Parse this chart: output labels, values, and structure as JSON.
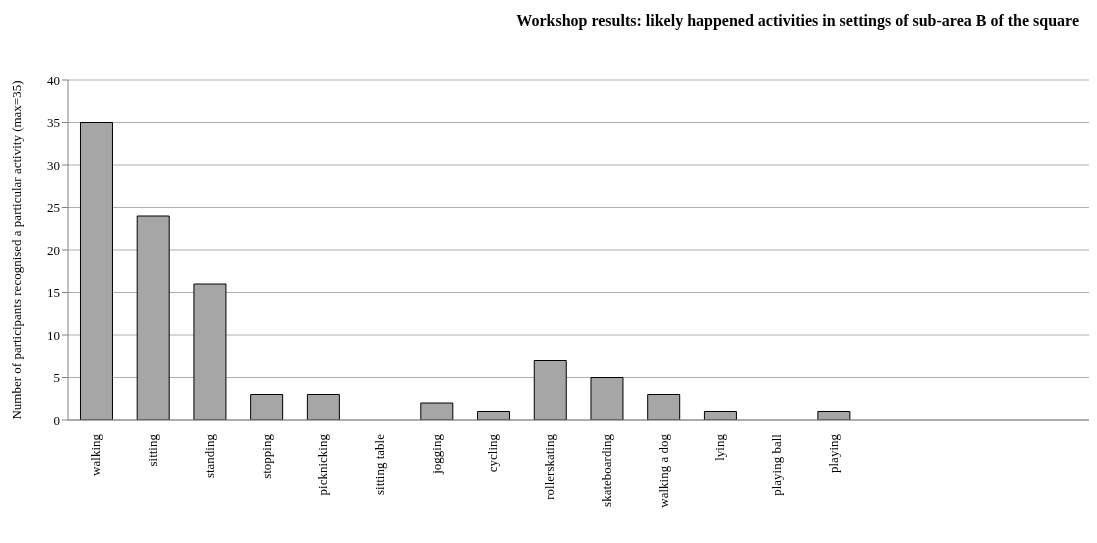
{
  "chart_data": {
    "type": "bar",
    "title": "Workshop results: likely happened activities in settings of sub-area B of the square",
    "ylabel": "Number of participants recognised a particular activity (max=35)",
    "categories": [
      "walking",
      "sitting",
      "standing",
      "stopping",
      "picknicking",
      "sitting table",
      "jogging",
      "cycling",
      "rollerskating",
      "skateboarding",
      "walking a dog",
      "lying",
      "playing ball",
      "playing",
      null,
      null,
      null,
      null
    ],
    "values": [
      35,
      24,
      16,
      3,
      3,
      0,
      2,
      1,
      7,
      5,
      3,
      1,
      0,
      1,
      null,
      null,
      null,
      null
    ],
    "color": "#a6a6a6",
    "ylim": [
      0,
      40
    ],
    "yticks": [
      0,
      5,
      10,
      15,
      20,
      25,
      30,
      35,
      40
    ],
    "grid": "y"
  }
}
